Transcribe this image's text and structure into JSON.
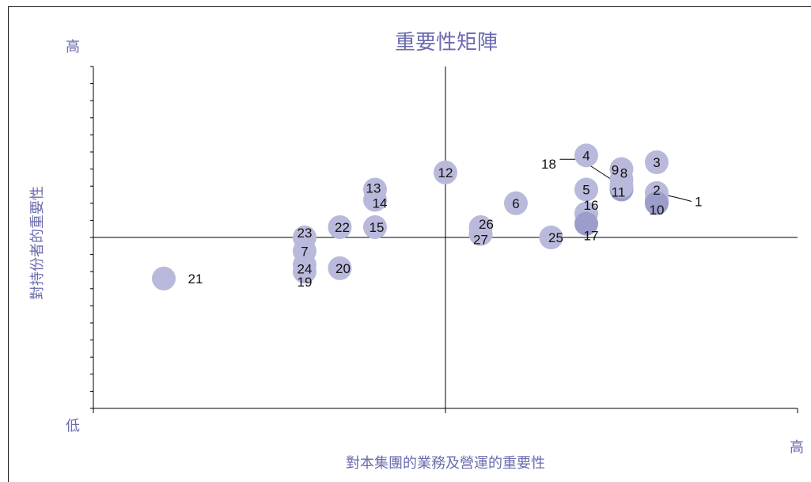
{
  "chart_data": {
    "type": "scatter",
    "title": "重要性矩陣",
    "xlabel": "對本集團的業務及營運的重要性",
    "ylabel": "對持份者的重要性",
    "y_high_label": "高",
    "y_low_label": "低",
    "x_high_label": "高",
    "xlim": [
      0,
      10
    ],
    "ylim": [
      0,
      10
    ],
    "x_mid": 5,
    "y_mid": 5,
    "grid": false,
    "colors": {
      "point": "#b9b9db",
      "point_dark": "#9d9dcb",
      "text_accent": "#6b6bb0"
    },
    "points": [
      {
        "id": "1",
        "x": 8.0,
        "y": 6.1
      },
      {
        "id": "2",
        "x": 8.0,
        "y": 6.3
      },
      {
        "id": "3",
        "x": 8.0,
        "y": 7.2
      },
      {
        "id": "4",
        "x": 7.0,
        "y": 7.4
      },
      {
        "id": "5",
        "x": 7.0,
        "y": 6.4
      },
      {
        "id": "6",
        "x": 6.0,
        "y": 6.0
      },
      {
        "id": "7",
        "x": 3.0,
        "y": 4.6
      },
      {
        "id": "8",
        "x": 7.5,
        "y": 6.7
      },
      {
        "id": "9",
        "x": 7.5,
        "y": 7.0
      },
      {
        "id": "10",
        "x": 8.0,
        "y": 6.0
      },
      {
        "id": "11",
        "x": 7.5,
        "y": 6.4
      },
      {
        "id": "12",
        "x": 5.0,
        "y": 6.9
      },
      {
        "id": "13",
        "x": 4.0,
        "y": 6.4
      },
      {
        "id": "14",
        "x": 4.0,
        "y": 6.1
      },
      {
        "id": "15",
        "x": 4.0,
        "y": 5.3
      },
      {
        "id": "16",
        "x": 7.0,
        "y": 5.7
      },
      {
        "id": "17",
        "x": 7.0,
        "y": 5.4
      },
      {
        "id": "18",
        "x": 7.5,
        "y": 6.5
      },
      {
        "id": "19",
        "x": 3.0,
        "y": 4.0
      },
      {
        "id": "20",
        "x": 3.5,
        "y": 4.1
      },
      {
        "id": "21",
        "x": 1.0,
        "y": 3.8
      },
      {
        "id": "22",
        "x": 3.5,
        "y": 5.3
      },
      {
        "id": "23",
        "x": 3.0,
        "y": 5.0
      },
      {
        "id": "24",
        "x": 3.0,
        "y": 4.2
      },
      {
        "id": "25",
        "x": 6.5,
        "y": 5.0
      },
      {
        "id": "26",
        "x": 5.5,
        "y": 5.3
      },
      {
        "id": "27",
        "x": 5.5,
        "y": 5.1
      }
    ]
  }
}
